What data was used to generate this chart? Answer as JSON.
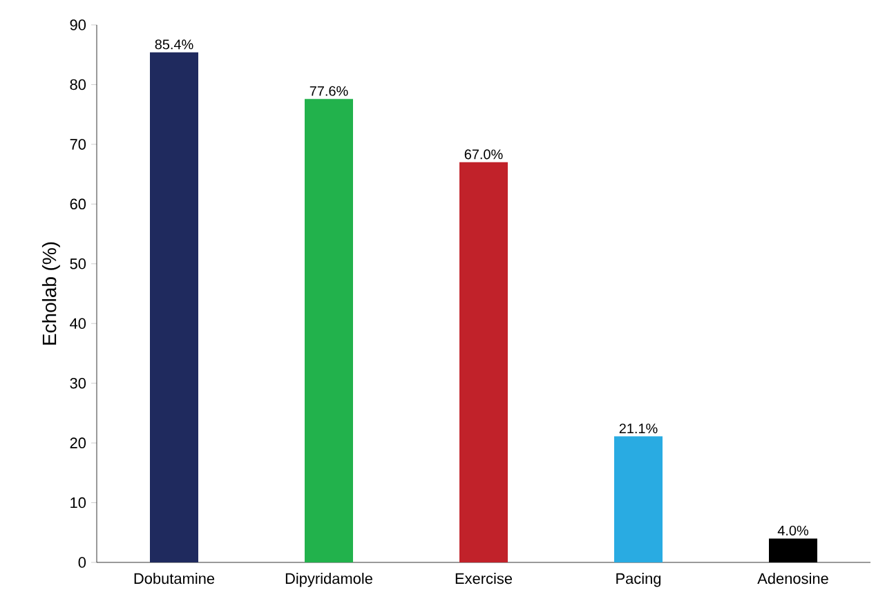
{
  "chart_data": {
    "type": "bar",
    "ylabel": "Echolab (%)",
    "categories": [
      "Dobutamine",
      "Dipyridamole",
      "Exercise",
      "Pacing",
      "Adenosine"
    ],
    "values": [
      85.4,
      77.6,
      67.0,
      21.1,
      4.0
    ],
    "colors": [
      "#1f2a5e",
      "#22b24c",
      "#c1222a",
      "#29abe2",
      "#000000"
    ],
    "value_labels": [
      "85.4%",
      "77.6%",
      "67.0%",
      "21.1%",
      "4.0%"
    ],
    "ylim": [
      0,
      90
    ],
    "yticks": [
      0,
      10,
      20,
      30,
      40,
      50,
      60,
      70,
      80,
      90
    ],
    "grid": false
  }
}
